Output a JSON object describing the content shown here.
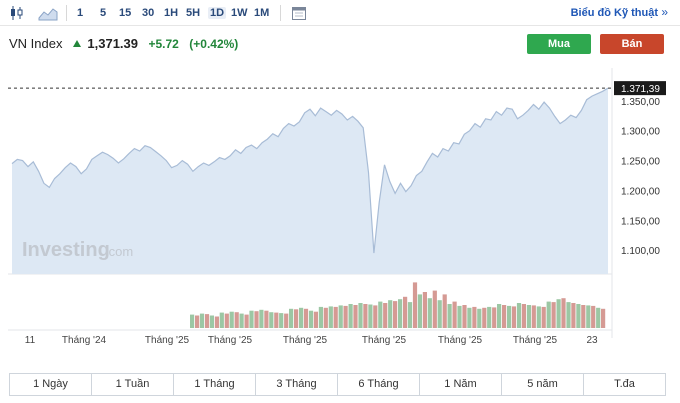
{
  "toolbar": {
    "intervals": [
      "1",
      "5",
      "15",
      "30",
      "1H",
      "5H",
      "1D",
      "1W",
      "1M"
    ],
    "active_interval": "1D",
    "advanced_link": "Biểu đồ Kỹ thuật",
    "advanced_chevron": "»"
  },
  "header": {
    "name": "VN Index",
    "price": "1,371.39",
    "change": "+5.72",
    "change_pct": "(+0.42%)",
    "direction": "up"
  },
  "actions": {
    "buy": "Mua",
    "sell": "Bán"
  },
  "colors": {
    "up": "#22863a",
    "buy": "#2fa84f",
    "sell": "#c8462b",
    "area": "#dde8f4",
    "line": "#a8bcd6",
    "vol_up": "#9cc7a4",
    "vol_down": "#d59a94"
  },
  "watermark": {
    "brand": "Investing",
    "suffix": ".com"
  },
  "chart_data": {
    "type": "area",
    "ylim": [
      1060,
      1385
    ],
    "yticks": [
      1350,
      1300,
      1250,
      1200,
      1150,
      1100
    ],
    "ytick_labels": [
      "1.350,00",
      "1.300,00",
      "1.250,00",
      "1.200,00",
      "1.150,00",
      "1.100,00"
    ],
    "last_value": 1371.39,
    "last_label": "1.371,39",
    "xtick_labels": [
      "11",
      "Tháng '24",
      "Tháng '25",
      "Tháng '25",
      "Tháng '25",
      "Tháng '25",
      "Tháng '25",
      "Tháng '25",
      "23"
    ],
    "values": [
      1245,
      1252,
      1250,
      1240,
      1248,
      1232,
      1212,
      1205,
      1220,
      1228,
      1238,
      1246,
      1240,
      1228,
      1236,
      1252,
      1258,
      1264,
      1260,
      1254,
      1246,
      1253,
      1262,
      1270,
      1266,
      1275,
      1272,
      1265,
      1258,
      1250,
      1238,
      1242,
      1250,
      1244,
      1232,
      1240,
      1246,
      1242,
      1248,
      1255,
      1252,
      1258,
      1268,
      1262,
      1272,
      1276,
      1270,
      1280,
      1286,
      1295,
      1290,
      1304,
      1312,
      1308,
      1315,
      1330,
      1336,
      1325,
      1338,
      1332,
      1326,
      1334,
      1328,
      1318,
      1324,
      1316,
      1305,
      1230,
      1095,
      1180,
      1243,
      1215,
      1195,
      1212,
      1198,
      1208,
      1225,
      1232,
      1248,
      1262,
      1256,
      1270,
      1266,
      1280,
      1278,
      1294,
      1300,
      1312,
      1306,
      1320,
      1318,
      1332,
      1326,
      1338,
      1336,
      1320,
      1326,
      1334,
      1344,
      1336,
      1348,
      1338,
      1324,
      1312,
      1318,
      1326,
      1322,
      1334,
      1352,
      1358,
      1362,
      1366,
      1371.39
    ],
    "volume": {
      "ylim": [
        0,
        100
      ],
      "up": [
        28,
        30,
        26,
        32,
        34,
        30,
        36,
        38,
        33,
        31,
        40,
        42,
        36,
        44,
        45,
        47,
        50,
        52,
        49,
        55,
        58,
        60,
        54,
        70,
        62,
        58,
        50,
        46,
        42,
        40,
        44,
        50,
        46,
        52,
        48,
        45,
        55,
        60,
        54,
        50,
        47,
        42
      ],
      "down": [
        26,
        29,
        24,
        30,
        33,
        28,
        35,
        36,
        32,
        30,
        39,
        40,
        34,
        42,
        44,
        46,
        48,
        50,
        47,
        52,
        56,
        65,
        95,
        75,
        78,
        70,
        55,
        48,
        44,
        42,
        43,
        48,
        45,
        50,
        47,
        44,
        54,
        62,
        52,
        48,
        46,
        40
      ]
    }
  },
  "ranges": [
    "1 Ngày",
    "1 Tuần",
    "1 Tháng",
    "3 Tháng",
    "6 Tháng",
    "1 Năm",
    "5 năm",
    "T.đa"
  ]
}
